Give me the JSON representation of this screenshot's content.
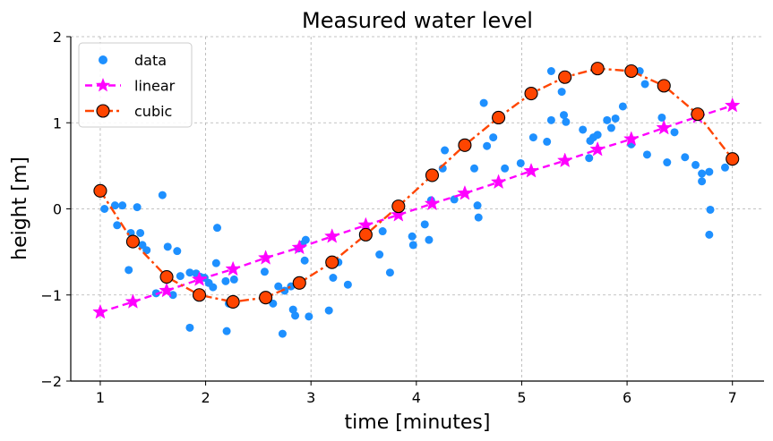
{
  "chart_data": {
    "type": "line",
    "title": "Measured water level",
    "xlabel": "time [minutes]",
    "ylabel": "height [m]",
    "xlim": [
      0.72,
      7.3
    ],
    "ylim": [
      -2,
      2
    ],
    "xticks": [
      1,
      2,
      3,
      4,
      5,
      6,
      7
    ],
    "yticks": [
      -2,
      -1,
      0,
      1,
      2
    ],
    "xtick_labels": [
      "1",
      "2",
      "3",
      "4",
      "5",
      "6",
      "7"
    ],
    "ytick_labels": [
      "−2",
      "−1",
      "0",
      "1",
      "2"
    ],
    "grid": true,
    "grid_style": "dashed",
    "legend_position": "top-left",
    "series": [
      {
        "name": "data",
        "kind": "scatter",
        "color": "#1e90ff",
        "marker": "circle",
        "points": [
          [
            1.04,
            0.0
          ],
          [
            1.14,
            0.04
          ],
          [
            1.16,
            -0.19
          ],
          [
            1.21,
            0.04
          ],
          [
            1.27,
            -0.71
          ],
          [
            1.29,
            -0.28
          ],
          [
            1.31,
            -0.41
          ],
          [
            1.35,
            0.02
          ],
          [
            1.38,
            -0.28
          ],
          [
            1.4,
            -0.42
          ],
          [
            1.44,
            -0.48
          ],
          [
            1.53,
            -0.98
          ],
          [
            1.59,
            0.16
          ],
          [
            1.64,
            -0.44
          ],
          [
            1.69,
            -1.0
          ],
          [
            1.73,
            -0.49
          ],
          [
            1.76,
            -0.78
          ],
          [
            1.85,
            -1.38
          ],
          [
            1.85,
            -0.74
          ],
          [
            1.91,
            -0.75
          ],
          [
            1.95,
            -0.79
          ],
          [
            1.99,
            -0.8
          ],
          [
            2.03,
            -0.86
          ],
          [
            2.07,
            -0.91
          ],
          [
            2.1,
            -0.63
          ],
          [
            2.11,
            -0.22
          ],
          [
            2.19,
            -0.84
          ],
          [
            2.2,
            -1.42
          ],
          [
            2.22,
            -1.1
          ],
          [
            2.27,
            -0.82
          ],
          [
            2.56,
            -0.73
          ],
          [
            2.64,
            -1.1
          ],
          [
            2.69,
            -0.9
          ],
          [
            2.73,
            -1.45
          ],
          [
            2.75,
            -0.95
          ],
          [
            2.81,
            -0.9
          ],
          [
            2.83,
            -1.17
          ],
          [
            2.85,
            -1.24
          ],
          [
            2.88,
            -0.46
          ],
          [
            2.92,
            -0.41
          ],
          [
            2.94,
            -0.6
          ],
          [
            2.95,
            -0.36
          ],
          [
            2.98,
            -1.25
          ],
          [
            3.17,
            -1.18
          ],
          [
            3.19,
            -0.65
          ],
          [
            3.21,
            -0.8
          ],
          [
            3.26,
            -0.62
          ],
          [
            3.35,
            -0.88
          ],
          [
            3.65,
            -0.53
          ],
          [
            3.68,
            -0.26
          ],
          [
            3.75,
            -0.74
          ],
          [
            3.96,
            -0.32
          ],
          [
            3.97,
            -0.42
          ],
          [
            4.08,
            -0.18
          ],
          [
            4.12,
            -0.36
          ],
          [
            4.14,
            0.1
          ],
          [
            4.25,
            0.47
          ],
          [
            4.27,
            0.68
          ],
          [
            4.36,
            0.11
          ],
          [
            4.55,
            0.47
          ],
          [
            4.58,
            0.04
          ],
          [
            4.59,
            -0.1
          ],
          [
            4.64,
            1.23
          ],
          [
            4.67,
            0.73
          ],
          [
            4.73,
            0.83
          ],
          [
            4.84,
            0.47
          ],
          [
            4.99,
            0.53
          ],
          [
            5.11,
            0.83
          ],
          [
            5.24,
            0.78
          ],
          [
            5.28,
            1.03
          ],
          [
            5.28,
            1.6
          ],
          [
            5.38,
            1.36
          ],
          [
            5.4,
            1.09
          ],
          [
            5.42,
            1.01
          ],
          [
            5.58,
            0.92
          ],
          [
            5.64,
            0.59
          ],
          [
            5.65,
            0.79
          ],
          [
            5.68,
            0.83
          ],
          [
            5.72,
            0.86
          ],
          [
            5.81,
            1.03
          ],
          [
            5.85,
            0.94
          ],
          [
            5.89,
            1.05
          ],
          [
            5.96,
            1.19
          ],
          [
            6.04,
            0.75
          ],
          [
            6.12,
            1.6
          ],
          [
            6.17,
            1.45
          ],
          [
            6.19,
            0.63
          ],
          [
            6.33,
            1.06
          ],
          [
            6.38,
            0.54
          ],
          [
            6.45,
            0.89
          ],
          [
            6.55,
            0.6
          ],
          [
            6.65,
            0.51
          ],
          [
            6.71,
            0.32
          ],
          [
            6.71,
            0.41
          ],
          [
            6.78,
            -0.3
          ],
          [
            6.78,
            0.43
          ],
          [
            6.79,
            -0.01
          ],
          [
            6.93,
            0.48
          ]
        ]
      },
      {
        "name": "linear",
        "kind": "line",
        "color": "#ff00ff",
        "linestyle": "dashed",
        "marker": "star",
        "points": [
          [
            1.0,
            -1.2
          ],
          [
            1.31,
            -1.08
          ],
          [
            1.63,
            -0.95
          ],
          [
            1.94,
            -0.82
          ],
          [
            2.26,
            -0.7
          ],
          [
            2.57,
            -0.57
          ],
          [
            2.89,
            -0.45
          ],
          [
            3.2,
            -0.32
          ],
          [
            3.52,
            -0.19
          ],
          [
            3.83,
            -0.07
          ],
          [
            4.15,
            0.06
          ],
          [
            4.46,
            0.18
          ],
          [
            4.78,
            0.31
          ],
          [
            5.09,
            0.44
          ],
          [
            5.41,
            0.56
          ],
          [
            5.72,
            0.69
          ],
          [
            6.04,
            0.81
          ],
          [
            6.35,
            0.94
          ],
          [
            6.67,
            1.07
          ],
          [
            7.0,
            1.2
          ]
        ]
      },
      {
        "name": "cubic",
        "kind": "line",
        "color": "#ff4500",
        "linestyle": "dashdot",
        "marker": "circle",
        "points": [
          [
            1.0,
            0.21
          ],
          [
            1.31,
            -0.38
          ],
          [
            1.63,
            -0.79
          ],
          [
            1.94,
            -1.0
          ],
          [
            2.26,
            -1.08
          ],
          [
            2.57,
            -1.03
          ],
          [
            2.89,
            -0.86
          ],
          [
            3.2,
            -0.62
          ],
          [
            3.52,
            -0.3
          ],
          [
            3.83,
            0.03
          ],
          [
            4.15,
            0.39
          ],
          [
            4.46,
            0.74
          ],
          [
            4.78,
            1.06
          ],
          [
            5.09,
            1.34
          ],
          [
            5.41,
            1.53
          ],
          [
            5.72,
            1.63
          ],
          [
            6.04,
            1.6
          ],
          [
            6.35,
            1.43
          ],
          [
            6.67,
            1.1
          ],
          [
            7.0,
            0.58
          ]
        ]
      }
    ]
  }
}
